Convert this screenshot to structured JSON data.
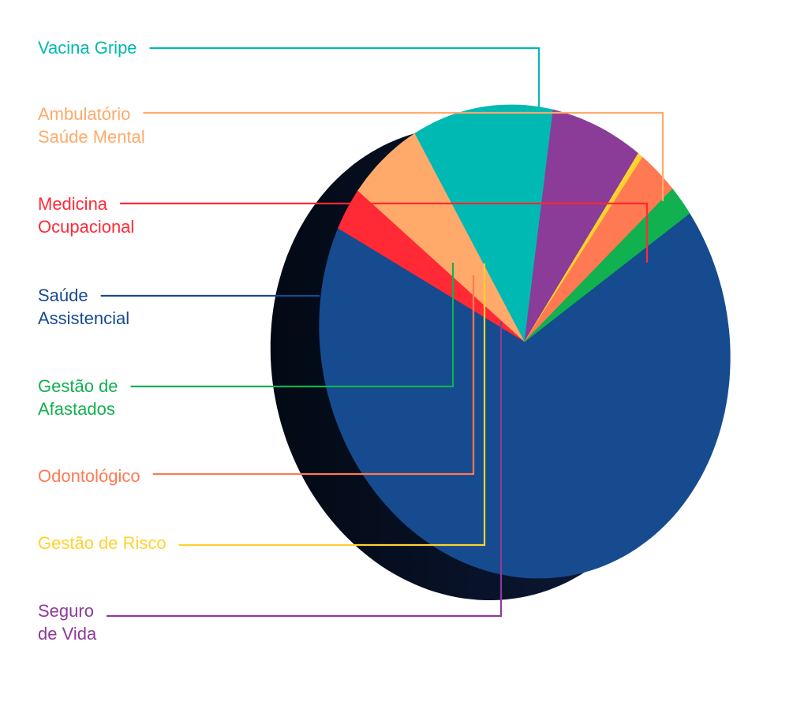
{
  "chart_data": {
    "type": "pie",
    "style": "3d-exploded-ring",
    "segments": [
      {
        "name": "Saúde Assistencial",
        "label_lines": [
          "Saúde",
          "Assistencial"
        ],
        "value": 66,
        "color": "#164B90"
      },
      {
        "name": "Medicina Ocupacional",
        "label_lines": [
          "Medicina",
          "Ocupacional"
        ],
        "value": 3,
        "color": "#FF2A35"
      },
      {
        "name": "Ambulatório Saúde Mental",
        "label_lines": [
          "Ambulatório",
          "Saúde Mental"
        ],
        "value": 6,
        "color": "#FFAA6B"
      },
      {
        "name": "Vacina Gripe",
        "label_lines": [
          "Vacina Gripe"
        ],
        "value": 11,
        "color": "#00B9B2"
      },
      {
        "name": "Seguro de Vida",
        "label_lines": [
          "Seguro",
          "de Vida"
        ],
        "value": 7,
        "color": "#8B3B98"
      },
      {
        "name": "Gestão de Risco",
        "label_lines": [
          "Gestão de Risco"
        ],
        "value": 0.4,
        "color": "#FFD22E"
      },
      {
        "name": "Odontológico",
        "label_lines": [
          "Odontológico"
        ],
        "value": 3,
        "color": "#FF7A52"
      },
      {
        "name": "Gestão de Afastados",
        "label_lines": [
          "Gestão de",
          "Afastados"
        ],
        "value": 2,
        "color": "#11B14F"
      }
    ],
    "depth_color": "#070F20",
    "legend_position": "left"
  }
}
